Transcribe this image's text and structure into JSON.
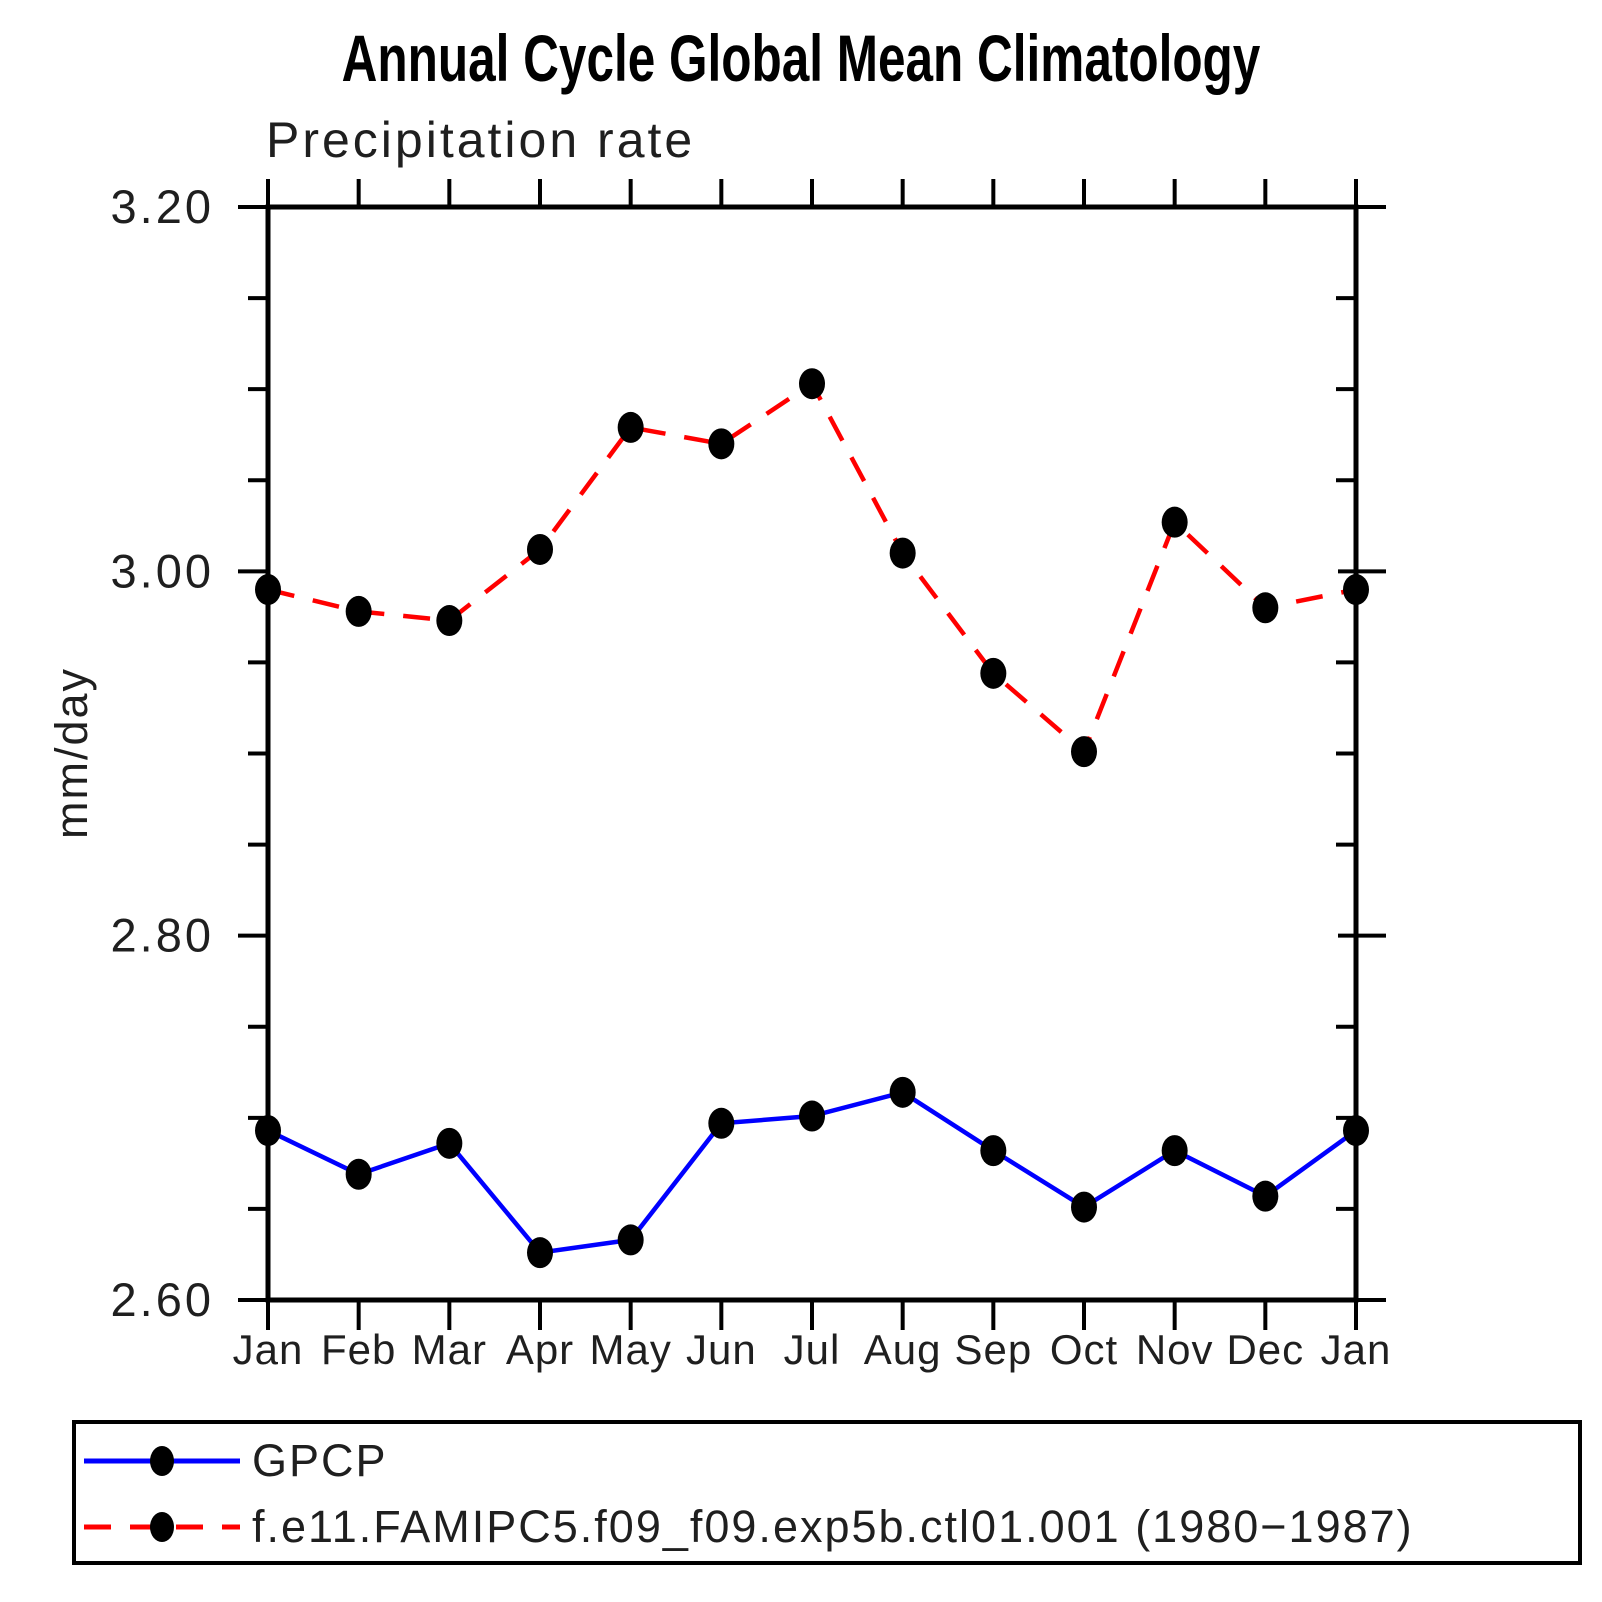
{
  "chart_data": {
    "type": "line",
    "title": "Annual Cycle Global Mean Climatology",
    "subtitle": "Precipitation rate",
    "ylabel": "mm/day",
    "xlabel": "",
    "ylim": [
      2.6,
      3.2
    ],
    "ytick_major": [
      2.6,
      2.8,
      3.0,
      3.2
    ],
    "ytick_labels": [
      "2.60",
      "2.80",
      "3.00",
      "3.20"
    ],
    "ytick_minor_step": 0.05,
    "grid": false,
    "legend_position": "bottom",
    "marker": "filled-circle",
    "marker_color": "#000000",
    "categories": [
      "Jan",
      "Feb",
      "Mar",
      "Apr",
      "May",
      "Jun",
      "Jul",
      "Aug",
      "Sep",
      "Oct",
      "Nov",
      "Dec",
      "Jan"
    ],
    "series": [
      {
        "name": "GPCP",
        "color": "#0000ff",
        "line_style": "solid",
        "values": [
          2.693,
          2.669,
          2.686,
          2.626,
          2.633,
          2.697,
          2.701,
          2.714,
          2.682,
          2.651,
          2.682,
          2.657,
          2.693
        ]
      },
      {
        "name": "f.e11.FAMIPC5.f09_f09.exp5b.ctl01.001 (1980−1987)",
        "color": "#ff0000",
        "line_style": "dashed",
        "values": [
          2.99,
          2.978,
          2.973,
          3.012,
          3.079,
          3.07,
          3.103,
          3.01,
          2.944,
          2.901,
          3.027,
          2.98,
          2.99
        ]
      }
    ]
  }
}
